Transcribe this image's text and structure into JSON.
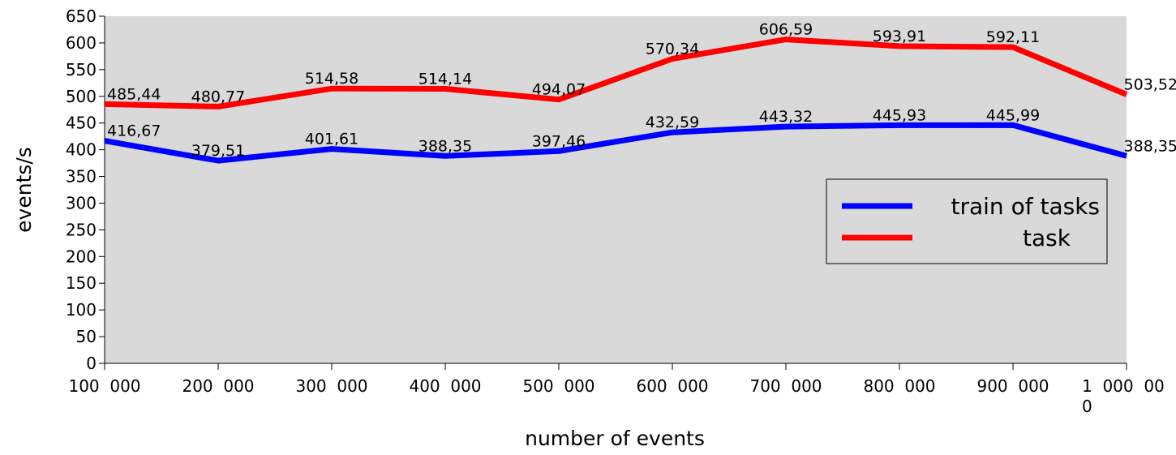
{
  "chart_data": {
    "type": "line",
    "xlabel": "number of events",
    "ylabel": "events/s",
    "ylim": [
      0,
      650
    ],
    "yticks": [
      "0",
      "50",
      "100",
      "150",
      "200",
      "250",
      "300",
      "350",
      "400",
      "450",
      "500",
      "550",
      "600",
      "650"
    ],
    "categories": [
      "100 000",
      "200 000",
      "300 000",
      "400 000",
      "500 000",
      "600 000",
      "700 000",
      "800 000",
      "900 000",
      "1 000 000"
    ],
    "categories_display": [
      [
        "100  000"
      ],
      [
        "200  000"
      ],
      [
        "300  000"
      ],
      [
        "400  000"
      ],
      [
        "500  000"
      ],
      [
        "600  000"
      ],
      [
        "700  000"
      ],
      [
        "800  000"
      ],
      [
        "900  000"
      ],
      [
        "1  000  00",
        "0"
      ]
    ],
    "series": [
      {
        "name": "train of tasks",
        "color": "#0000ff",
        "values": [
          416.67,
          379.51,
          401.61,
          388.35,
          397.46,
          432.59,
          443.32,
          445.93,
          445.99,
          388.35
        ],
        "labels": [
          "416,67",
          "379,51",
          "401,61",
          "388,35",
          "397,46",
          "432,59",
          "443,32",
          "445,93",
          "445,99",
          "388,35"
        ]
      },
      {
        "name": "task",
        "color": "#ff0000",
        "values": [
          485.44,
          480.77,
          514.58,
          514.14,
          494.07,
          570.34,
          606.59,
          593.91,
          592.11,
          503.52
        ],
        "labels": [
          "485,44",
          "480,77",
          "514,58",
          "514,14",
          "494,07",
          "570,34",
          "606,59",
          "593,91",
          "592,11",
          "503,52"
        ]
      }
    ],
    "grid": false,
    "legend_position": "right",
    "plot_background": "#d9d9d9"
  }
}
